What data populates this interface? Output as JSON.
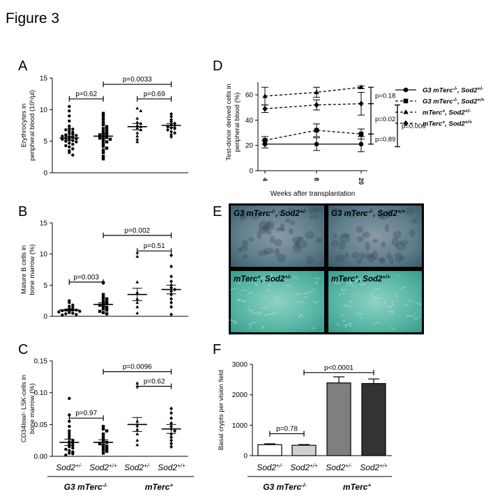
{
  "figure_title": "Figure 3",
  "chart_data": [
    {
      "panel": "A",
      "type": "scatter",
      "ylabel_lines": [
        "Erythrocytes in",
        "peripheral blood (10⁶/µl)"
      ],
      "ylim": [
        0,
        15
      ],
      "yticks": [
        "0",
        "5",
        "10",
        "15"
      ],
      "groups": [
        {
          "values": [
            10.5,
            9.8,
            9.0,
            8.2,
            7.4,
            7.0,
            6.9,
            6.8,
            6.6,
            6.4,
            6.2,
            6.1,
            6.0,
            5.9,
            5.8,
            5.7,
            5.6,
            5.5,
            5.4,
            5.3,
            5.2,
            5.1,
            5.0,
            4.9,
            4.7,
            4.5,
            4.3,
            4.1,
            3.8,
            3.5,
            3.2,
            2.8
          ],
          "mean": 5.5,
          "sem": 0.3,
          "marker": "circle"
        },
        {
          "values": [
            9.4,
            9.0,
            8.5,
            8.0,
            7.6,
            7.3,
            7.0,
            6.8,
            6.5,
            6.3,
            6.1,
            6.0,
            5.9,
            5.7,
            5.6,
            5.5,
            5.3,
            5.1,
            4.9,
            4.6,
            4.2,
            3.9,
            3.6,
            3.2,
            2.6,
            2.2
          ],
          "mean": 5.8,
          "sem": 0.4,
          "marker": "square"
        },
        {
          "values": [
            10.2,
            9.8,
            8.6,
            8.0,
            7.8,
            7.5,
            7.3,
            7.1,
            6.8,
            6.3,
            5.8,
            5.3,
            4.9
          ],
          "mean": 7.3,
          "sem": 0.5,
          "marker": "triangle"
        },
        {
          "values": [
            9.3,
            8.9,
            8.4,
            8.1,
            7.8,
            7.6,
            7.5,
            7.3,
            7.1,
            7.0,
            6.8,
            6.5,
            6.3,
            6.0,
            5.7
          ],
          "mean": 7.5,
          "sem": 0.3,
          "marker": "diamond"
        }
      ],
      "annotations": [
        {
          "text": "p=0.62",
          "g1": 0,
          "g2": 1,
          "y": 11.7
        },
        {
          "text": "p=0.0033",
          "g1": 1,
          "g2": 3,
          "y": 14.0
        },
        {
          "text": "p=0.69",
          "g1": 2,
          "g2": 3,
          "y": 11.7
        }
      ]
    },
    {
      "panel": "B",
      "type": "scatter",
      "ylabel_lines": [
        "Mature B cells in",
        "bone marrow (%)"
      ],
      "ylim": [
        0,
        15
      ],
      "yticks": [
        "0",
        "5",
        "10",
        "15"
      ],
      "groups": [
        {
          "values": [
            2.5,
            2.2,
            1.8,
            1.6,
            1.4,
            1.2,
            1.1,
            1.0,
            1.0,
            0.9,
            0.8,
            0.7,
            0.6,
            0.5,
            0.4,
            0.3,
            0.2
          ],
          "mean": 1.0,
          "sem": 0.15,
          "marker": "circle"
        },
        {
          "values": [
            5.4,
            3.5,
            3.0,
            2.8,
            2.5,
            2.3,
            2.1,
            2.0,
            1.8,
            1.6,
            1.4,
            1.2,
            1.0,
            0.8,
            0.6,
            0.4
          ],
          "mean": 1.9,
          "sem": 0.3,
          "marker": "square"
        },
        {
          "values": [
            10.2,
            9.6,
            5.5,
            3.8,
            2.8,
            2.2,
            1.5,
            0.5
          ],
          "mean": 3.5,
          "sem": 1.0,
          "marker": "triangle"
        },
        {
          "values": [
            9.8,
            8.0,
            6.4,
            5.6,
            5.0,
            4.6,
            4.3,
            4.0,
            3.5,
            2.8,
            2.2,
            1.5,
            0.3
          ],
          "mean": 4.3,
          "sem": 0.7,
          "marker": "diamond"
        }
      ],
      "annotations": [
        {
          "text": "p=0.003",
          "g1": 0,
          "g2": 1,
          "y": 5.5
        },
        {
          "text": "p=0.002",
          "g1": 1,
          "g2": 3,
          "y": 13.0
        },
        {
          "text": "p=0.51",
          "g1": 2,
          "g2": 3,
          "y": 10.5
        }
      ]
    },
    {
      "panel": "C",
      "type": "scatter",
      "ylabel_lines": [
        "CD34low/- LSK-cells in",
        "bone marrow (%)"
      ],
      "ylim": [
        0,
        0.15
      ],
      "yticks": [
        "0.00",
        "0.05",
        "0.10",
        "0.15"
      ],
      "groups": [
        {
          "values": [
            0.091,
            0.065,
            0.055,
            0.047,
            0.04,
            0.036,
            0.032,
            0.028,
            0.025,
            0.023,
            0.021,
            0.019,
            0.017,
            0.015,
            0.013,
            0.011,
            0.009,
            0.007,
            0.005,
            0.004,
            0.002
          ],
          "mean": 0.022,
          "sem": 0.005,
          "marker": "circle"
        },
        {
          "values": [
            0.047,
            0.043,
            0.04,
            0.035,
            0.03,
            0.026,
            0.024,
            0.022,
            0.02,
            0.018,
            0.016,
            0.014,
            0.012,
            0.01,
            0.008,
            0.005
          ],
          "mean": 0.022,
          "sem": 0.004,
          "marker": "square"
        },
        {
          "values": [
            0.115,
            0.11,
            0.055,
            0.048,
            0.042,
            0.035,
            0.025,
            0.018
          ],
          "mean": 0.05,
          "sem": 0.011,
          "marker": "triangle"
        },
        {
          "values": [
            0.075,
            0.068,
            0.06,
            0.052,
            0.047,
            0.043,
            0.04,
            0.035,
            0.03,
            0.025,
            0.02,
            0.015
          ],
          "mean": 0.043,
          "sem": 0.007,
          "marker": "diamond"
        }
      ],
      "annotations": [
        {
          "text": "p=0.97",
          "g1": 0,
          "g2": 1,
          "y": 0.06
        },
        {
          "text": "p=0.0096",
          "g1": 1,
          "g2": 3,
          "y": 0.133
        },
        {
          "text": "p=0.62",
          "g1": 2,
          "g2": 3,
          "y": 0.11
        }
      ]
    },
    {
      "panel": "D",
      "type": "line",
      "ylabel_lines": [
        "Test-donor derived cells in",
        "peripheral blood (%)"
      ],
      "xlabel": "Weeks after transplantation",
      "x": [
        "4",
        "8",
        "20"
      ],
      "ylim": [
        0,
        70
      ],
      "yticks": [
        "0",
        "20",
        "40",
        "60"
      ],
      "series": [
        {
          "name": "G3 mTerc-/-, Sod2+/-",
          "values": [
            21,
            21,
            21
          ],
          "err": [
            3,
            5,
            6
          ],
          "marker": "circle",
          "dashed": false
        },
        {
          "name": "G3 mTerc-/-, Sod2+/+",
          "values": [
            24,
            32,
            29
          ],
          "err": [
            3,
            5,
            4
          ],
          "marker": "square",
          "dashed": true
        },
        {
          "name": "mTerc+, Sod2+/-",
          "values": [
            59,
            62,
            66
          ],
          "err": [
            7,
            4,
            1
          ],
          "marker": "triangle",
          "dashed": true
        },
        {
          "name": "mTerc+, Sod2+/+",
          "values": [
            49,
            52,
            53
          ],
          "err": [
            3,
            4,
            9
          ],
          "marker": "diamond",
          "dashed": true
        }
      ],
      "annotations": [
        {
          "text": "p=0.18",
          "y1": 53,
          "y2": 66
        },
        {
          "text": "p=0.02",
          "y1": 29,
          "y2": 53
        },
        {
          "text": "p=0.89",
          "y1": 21,
          "y2": 29
        },
        {
          "text": "p=0.006",
          "y1": 19,
          "y2": 52
        }
      ]
    },
    {
      "panel": "F",
      "type": "bar",
      "ylabel_lines": [
        "Basal crypts per vision field"
      ],
      "ylim": [
        0,
        3000
      ],
      "yticks": [
        "0",
        "1000",
        "2000",
        "3000"
      ],
      "values": [
        360,
        340,
        2390,
        2370
      ],
      "err": [
        30,
        25,
        200,
        150
      ],
      "colors": [
        "#ffffff",
        "#d0d0d0",
        "#7f7f7f",
        "#333333"
      ],
      "annotations": [
        {
          "text": "p=0.78",
          "g1": 0,
          "g2": 1,
          "y": 720
        },
        {
          "text": "p<0.0001",
          "g1": 1,
          "g2": 3,
          "y": 2730
        }
      ]
    }
  ],
  "panel_letters": [
    "A",
    "B",
    "C",
    "D",
    "E",
    "F"
  ],
  "group_labels": {
    "sod_het": "Sod2+/-",
    "sod_wt": "Sod2+/+",
    "g3_main": "G3 mTerc",
    "g3_sup": "-/-",
    "mt_main": "mTerc",
    "mt_sup": "+"
  },
  "legend_items": [
    {
      "main1": "G3 mTerc",
      "sup1": "-/-",
      "main2": ", Sod2",
      "sup2": "+/-"
    },
    {
      "main1": "G3 mTerc",
      "sup1": "-/-",
      "main2": ", Sod2",
      "sup2": "+/+"
    },
    {
      "main1": "mTerc",
      "sup1": "+",
      "main2": ", Sod2",
      "sup2": "+/-"
    },
    {
      "main1": "mTerc",
      "sup1": "+",
      "main2": ", Sod2",
      "sup2": "+/+"
    }
  ],
  "micrographs": [
    {
      "main1": "G3 mTerc",
      "sup1": "-/-",
      "main2": ", Sod2",
      "sup2": "+/-",
      "tone": "dark"
    },
    {
      "main1": "G3 mTerc",
      "sup1": "-/-",
      "main2": ", Sod2",
      "sup2": "+/+",
      "tone": "dark"
    },
    {
      "main1": "mTerc",
      "sup1": "+",
      "main2": ", Sod2",
      "sup2": "+/-",
      "tone": "light"
    },
    {
      "main1": "mTerc",
      "sup1": "+",
      "main2": ", Sod2",
      "sup2": "+/+",
      "tone": "light"
    }
  ],
  "colors": {
    "axis": "#000000",
    "micro_dark": "#5f7e8c",
    "micro_light": "#59b7a6"
  }
}
